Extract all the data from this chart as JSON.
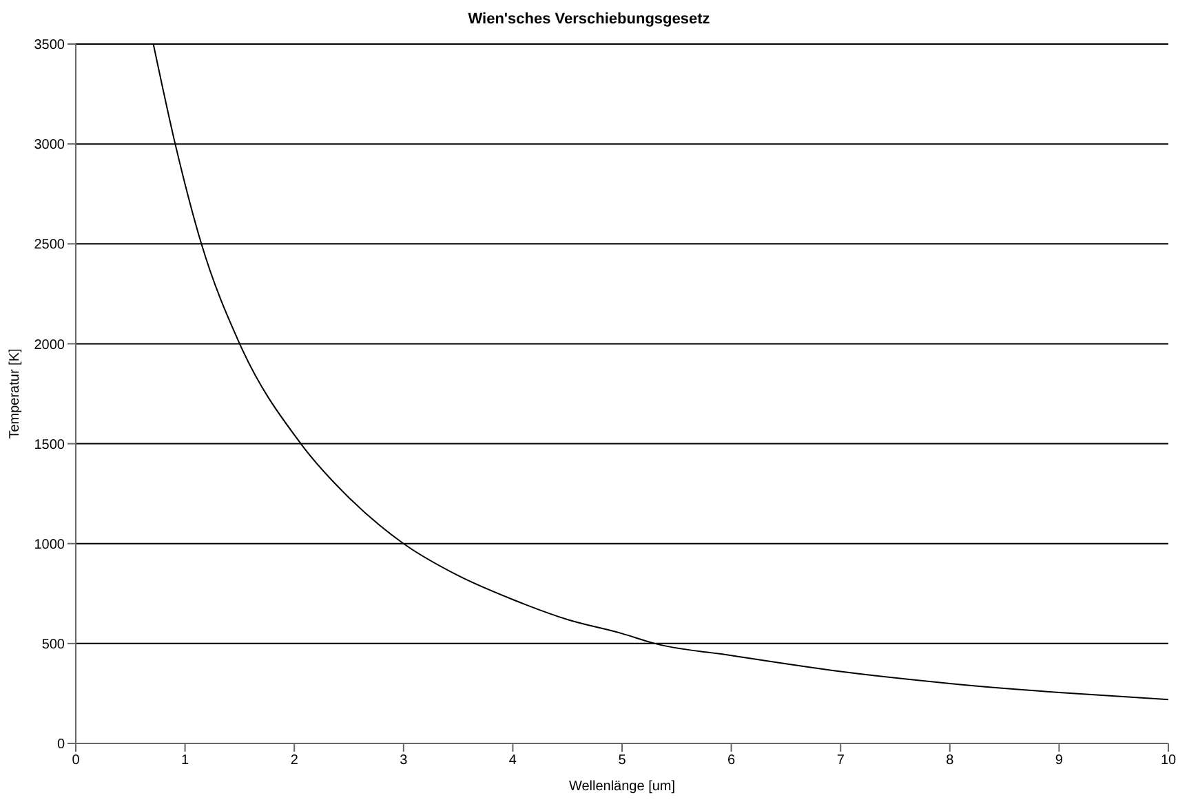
{
  "chart_data": {
    "type": "line",
    "title": "Wien'sches Verschiebungsgesetz",
    "xlabel": "Wellenlänge [um]",
    "ylabel": "Temperatur [K]",
    "x": [
      0.71,
      0.91,
      1.15,
      1.5,
      2.06,
      2.5,
      3.0,
      3.5,
      4,
      4.5,
      5,
      5.3,
      6,
      7,
      8,
      9,
      10
    ],
    "series": [
      {
        "color": "#000000",
        "values": [
          3500,
          3000,
          2500,
          2000,
          1500,
          1230,
          1000,
          840,
          720,
          620,
          550,
          500,
          440,
          360,
          300,
          255,
          220
        ]
      }
    ],
    "xlim": [
      0,
      10
    ],
    "xticks": [
      0,
      1,
      2,
      3,
      4,
      5,
      6,
      7,
      8,
      9,
      10
    ],
    "ylim": [
      0,
      3500
    ],
    "yticks": [
      0,
      500,
      1000,
      1500,
      2000,
      2500,
      3000,
      3500
    ],
    "grid": "y",
    "legend": false,
    "marker": "none",
    "line_style": "solid"
  }
}
